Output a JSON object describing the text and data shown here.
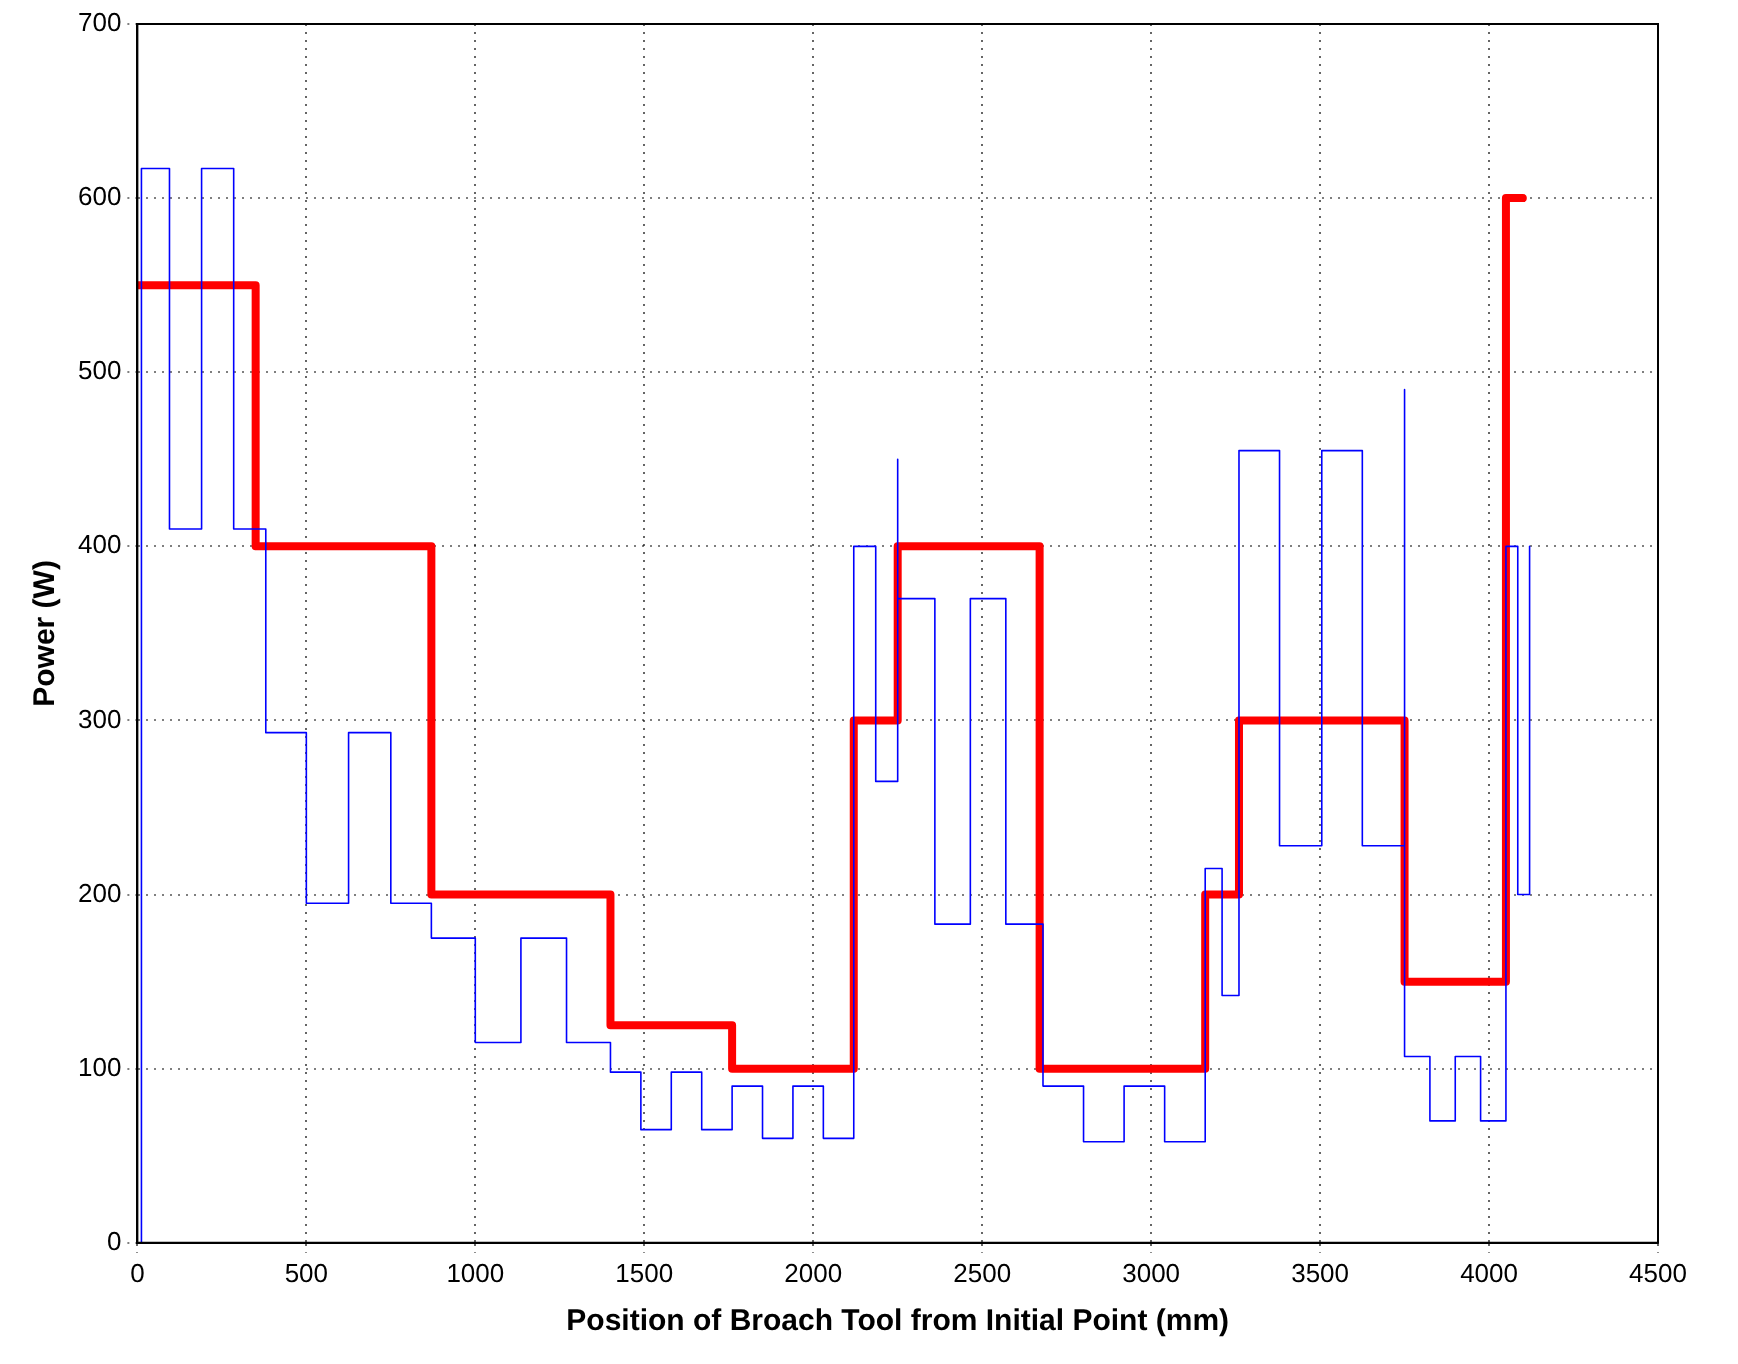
{
  "chart_data": {
    "type": "line",
    "xlabel": "Position of Broach Tool from Initial Point (mm)",
    "ylabel": "Power (W)",
    "xlim": [
      0,
      4500
    ],
    "ylim": [
      0,
      700
    ],
    "xticks": [
      0,
      500,
      1000,
      1500,
      2000,
      2500,
      3000,
      3500,
      4000,
      4500
    ],
    "yticks": [
      0,
      100,
      200,
      300,
      400,
      500,
      600,
      700
    ],
    "grid": true,
    "marker": "none",
    "line_style": "solid",
    "series": [
      {
        "color": "#0000ff",
        "x": [
          12,
          12,
          95,
          95,
          190,
          190,
          285,
          285,
          380,
          380,
          500,
          500,
          625,
          625,
          750,
          750,
          870,
          870,
          1000,
          1000,
          1135,
          1135,
          1270,
          1270,
          1400,
          1400,
          1490,
          1490,
          1580,
          1580,
          1670,
          1670,
          1760,
          1760,
          1850,
          1850,
          1940,
          1940,
          2030,
          2030,
          2120,
          2120,
          2185,
          2185,
          2250,
          2250,
          2250,
          2360,
          2360,
          2465,
          2465,
          2570,
          2570,
          2680,
          2680,
          2800,
          2800,
          2920,
          2920,
          3040,
          3040,
          3160,
          3160,
          3210,
          3210,
          3260,
          3260,
          3380,
          3380,
          3505,
          3505,
          3625,
          3625,
          3750,
          3750,
          3750,
          3825,
          3825,
          3900,
          3900,
          3975,
          3975,
          4050,
          4050,
          4085,
          4085,
          4120,
          4120
        ],
        "values": [
          0,
          617,
          617,
          410,
          410,
          617,
          617,
          410,
          410,
          293,
          293,
          195,
          195,
          293,
          293,
          195,
          195,
          175,
          175,
          115,
          115,
          175,
          175,
          115,
          115,
          98,
          98,
          65,
          65,
          98,
          98,
          65,
          65,
          90,
          90,
          60,
          60,
          90,
          90,
          60,
          60,
          400,
          400,
          265,
          265,
          450,
          370,
          370,
          183,
          183,
          370,
          370,
          183,
          183,
          90,
          90,
          58,
          58,
          90,
          90,
          58,
          58,
          215,
          215,
          142,
          142,
          455,
          455,
          228,
          228,
          455,
          455,
          228,
          228,
          490,
          107,
          107,
          70,
          70,
          107,
          107,
          70,
          70,
          400,
          400,
          200,
          200,
          400
        ]
      },
      {
        "color": "#ff0000",
        "x": [
          0,
          350,
          350,
          870,
          870,
          1400,
          1400,
          1760,
          1760,
          2120,
          2120,
          2250,
          2250,
          2670,
          2670,
          3160,
          3160,
          3260,
          3260,
          3750,
          3750,
          4050,
          4050,
          4100
        ],
        "values": [
          550,
          550,
          400,
          400,
          200,
          200,
          125,
          125,
          100,
          100,
          300,
          300,
          400,
          400,
          100,
          100,
          200,
          200,
          300,
          300,
          150,
          150,
          600,
          600
        ]
      }
    ]
  }
}
